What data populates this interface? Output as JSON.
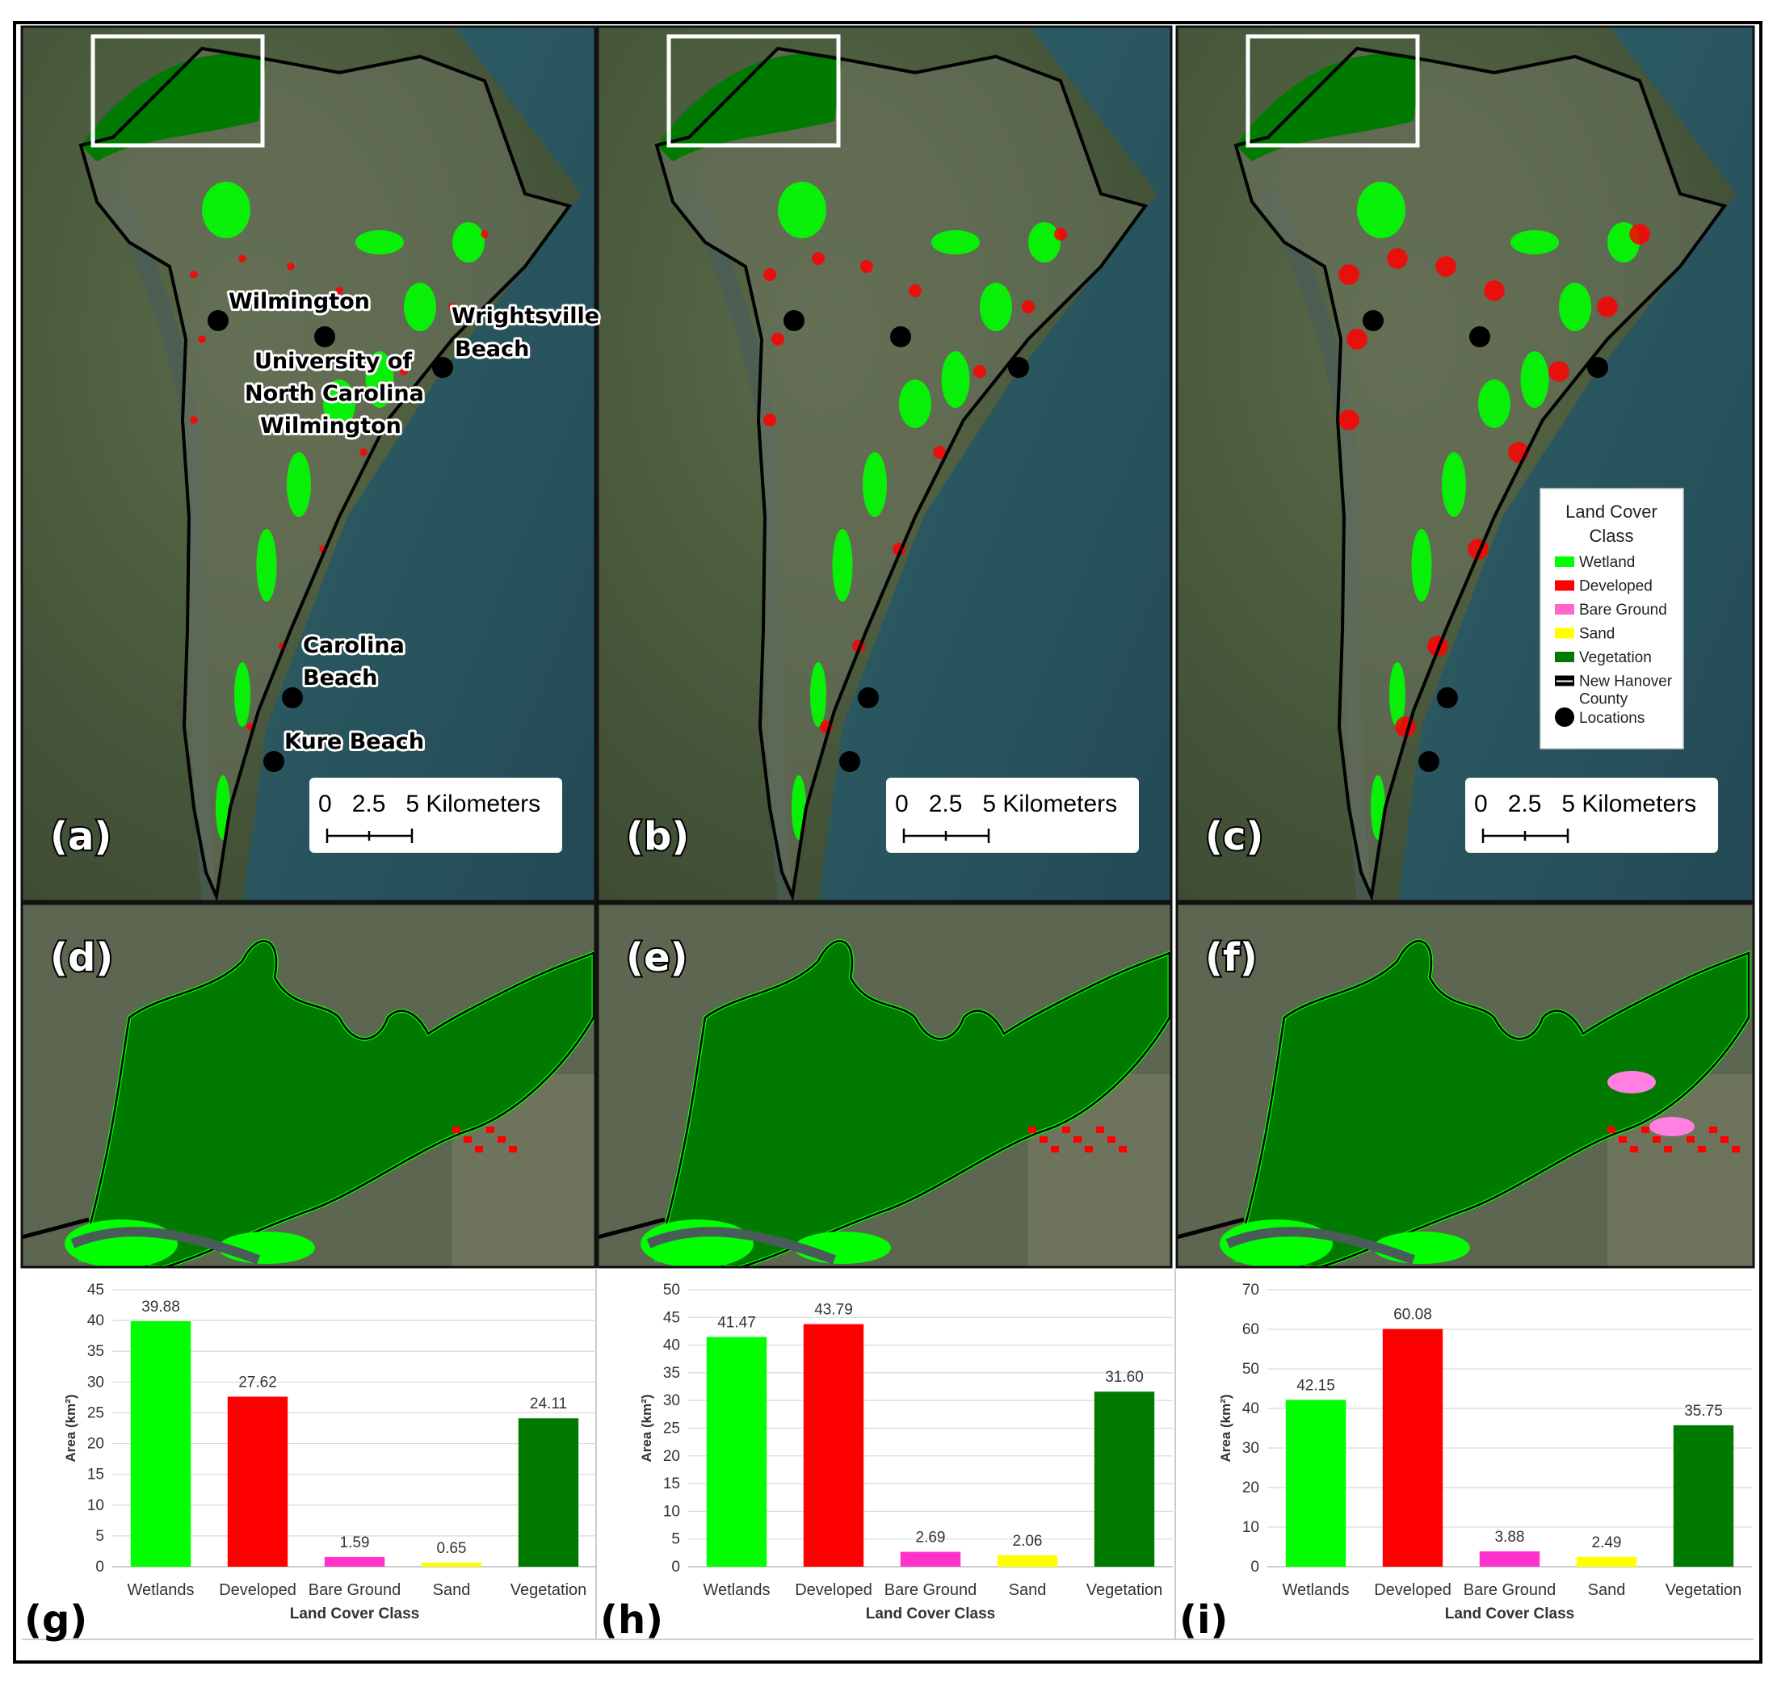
{
  "panel_letters": [
    "(a)",
    "(b)",
    "(c)",
    "(d)",
    "(e)",
    "(f)",
    "(g)",
    "(h)",
    "(i)"
  ],
  "place_labels": {
    "wilmington": "Wilmington",
    "wrightsville_1": "Wrightsville",
    "wrightsville_2": "Beach",
    "uncw_1": "University of",
    "uncw_2": "North Carolina",
    "uncw_3": "Wilmington",
    "carolina_1": "Carolina",
    "carolina_2": "Beach",
    "kure": "Kure Beach"
  },
  "scalebar": {
    "text": "0   2.5   5 Kilometers"
  },
  "legend": {
    "title_1": "Land Cover",
    "title_2": "Class",
    "items": [
      {
        "label": "Wetland",
        "color": "#00ff00"
      },
      {
        "label": "Developed",
        "color": "#ff0000"
      },
      {
        "label": "Bare Ground",
        "color": "#ff66cc"
      },
      {
        "label": "Sand",
        "color": "#ffff00"
      },
      {
        "label": "Vegetation",
        "color": "#007a00"
      },
      {
        "label": "New Hanover",
        "label2": "County",
        "color": "#000000"
      },
      {
        "label": "Locations",
        "color": "#000000"
      }
    ]
  },
  "colors": {
    "wetland": "#00ff00",
    "developed": "#ff0000",
    "bare": "#ff33cc",
    "sand": "#ffff00",
    "vegetation": "#007a00",
    "water": "#2c5a63",
    "land": "#4a5a3c"
  },
  "chart_data": [
    {
      "type": "bar",
      "categories": [
        "Wetlands",
        "Developed",
        "Bare Ground",
        "Sand",
        "Vegetation"
      ],
      "values": [
        39.88,
        27.62,
        1.59,
        0.65,
        24.11
      ],
      "value_labels": [
        "39.88",
        "27.62",
        "1.59",
        "0.65",
        "24.11"
      ],
      "colors": [
        "#00ff00",
        "#ff0000",
        "#ff33cc",
        "#ffff00",
        "#007a00"
      ],
      "xlabel": "Land Cover Class",
      "ylabel": "Area (km²)",
      "ylim": [
        0,
        45
      ],
      "yticks": [
        0,
        5,
        10,
        15,
        20,
        25,
        30,
        35,
        40,
        45
      ]
    },
    {
      "type": "bar",
      "categories": [
        "Wetlands",
        "Developed",
        "Bare Ground",
        "Sand",
        "Vegetation"
      ],
      "values": [
        41.47,
        43.79,
        2.69,
        2.06,
        31.6
      ],
      "value_labels": [
        "41.47",
        "43.79",
        "2.69",
        "2.06",
        "31.60"
      ],
      "colors": [
        "#00ff00",
        "#ff0000",
        "#ff33cc",
        "#ffff00",
        "#007a00"
      ],
      "xlabel": "Land Cover Class",
      "ylabel": "Area (km²)",
      "ylim": [
        0,
        50
      ],
      "yticks": [
        0,
        5,
        10,
        15,
        20,
        25,
        30,
        35,
        40,
        45,
        50
      ]
    },
    {
      "type": "bar",
      "categories": [
        "Wetlands",
        "Developed",
        "Bare Ground",
        "Sand",
        "Vegetation"
      ],
      "values": [
        42.15,
        60.08,
        3.88,
        2.49,
        35.75
      ],
      "value_labels": [
        "42.15",
        "60.08",
        "3.88",
        "2.49",
        "35.75"
      ],
      "colors": [
        "#00ff00",
        "#ff0000",
        "#ff33cc",
        "#ffff00",
        "#007a00"
      ],
      "xlabel": "Land Cover Class",
      "ylabel": "Area (km²)",
      "ylim": [
        0,
        70
      ],
      "yticks": [
        0,
        10,
        20,
        30,
        40,
        50,
        60,
        70
      ]
    }
  ]
}
